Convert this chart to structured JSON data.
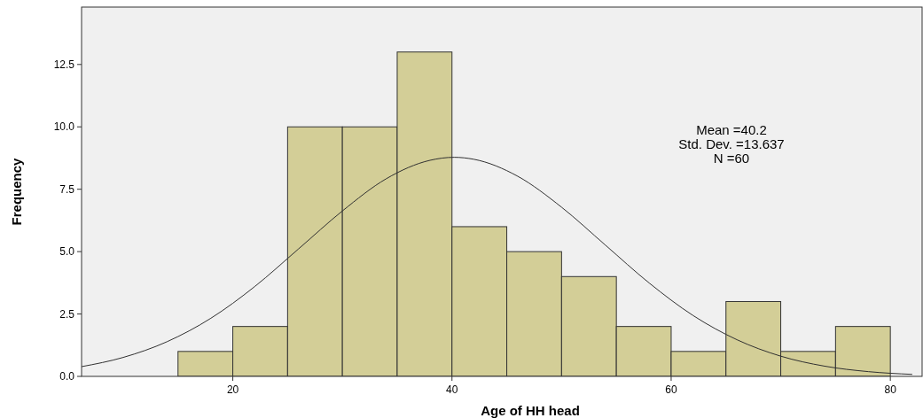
{
  "chart_data": {
    "type": "histogram",
    "xlabel": "Age of HH head",
    "ylabel": "Frequency",
    "xlim": [
      6.2,
      82.9
    ],
    "ylim": [
      0,
      14.8
    ],
    "xticks": [
      20,
      40,
      60,
      80
    ],
    "yticks": [
      {
        "value": 0,
        "label": "0.0"
      },
      {
        "value": 2.5,
        "label": "2.5"
      },
      {
        "value": 5,
        "label": "5.0"
      },
      {
        "value": 7.5,
        "label": "7.5"
      },
      {
        "value": 10,
        "label": "10.0"
      },
      {
        "value": 12.5,
        "label": "12.5"
      }
    ],
    "grid": false,
    "annotations": [
      "Mean =40.2",
      "Std. Dev. =13.637",
      "N =60"
    ],
    "series": [
      {
        "color": "#d3ce97",
        "bins": [
          15,
          20,
          25,
          30,
          35,
          40,
          45,
          50,
          55,
          60,
          65,
          70,
          75,
          80
        ],
        "values": [
          1,
          2,
          10,
          10,
          13,
          6,
          5,
          4,
          2,
          1,
          3,
          1,
          2
        ]
      },
      {
        "type": "line",
        "color": "#303030",
        "x": [
          6.2,
          10,
          14,
          18,
          22,
          26,
          30,
          34,
          38,
          40.2,
          42,
          46,
          50,
          54,
          58,
          62,
          66,
          70,
          74,
          78,
          82
        ],
        "values": [
          0.39,
          0.76,
          1.39,
          2.33,
          3.6,
          5.11,
          6.63,
          7.92,
          8.66,
          8.78,
          8.7,
          8.02,
          6.78,
          5.26,
          3.74,
          2.44,
          1.47,
          0.81,
          0.41,
          0.19,
          0.08
        ]
      }
    ]
  }
}
